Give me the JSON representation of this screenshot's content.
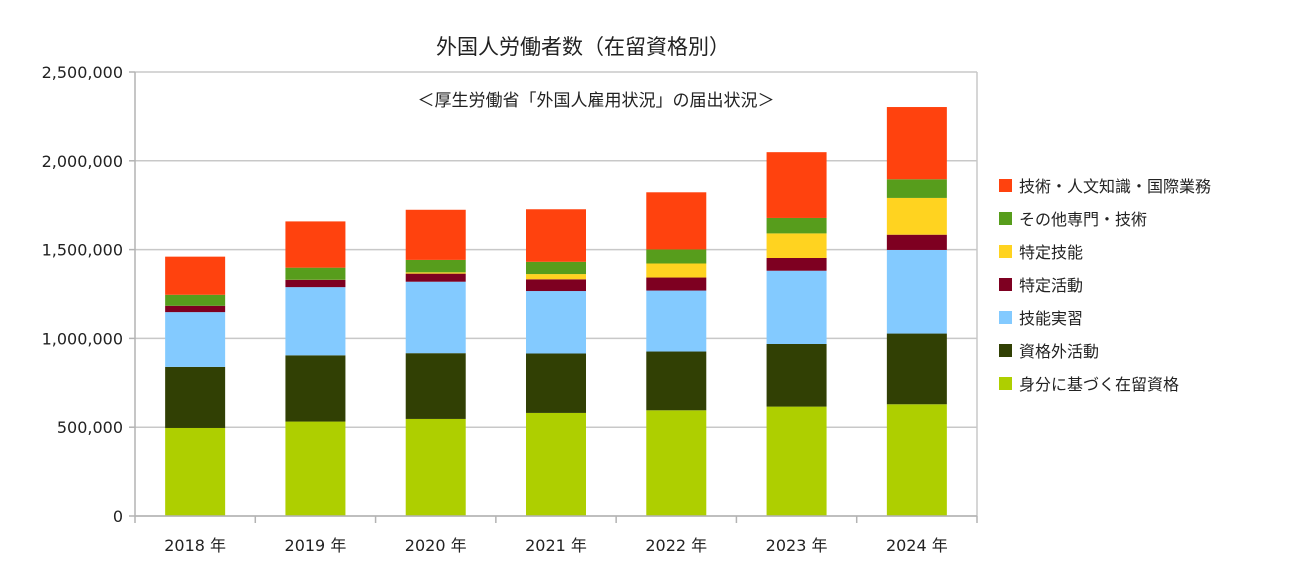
{
  "chart_data": {
    "type": "bar",
    "stacked": true,
    "title": "外国人労働者数（在留資格別）",
    "subtitle": "＜厚生労働省「外国人雇用状況」の届出状況＞",
    "xlabel": "",
    "ylabel": "",
    "ylim": [
      0,
      2500000
    ],
    "yticks": [
      0,
      500000,
      1000000,
      1500000,
      2000000,
      2500000
    ],
    "ytick_labels": [
      "0",
      "500,000",
      "1,000,000",
      "1,500,000",
      "2,000,000",
      "2,500,000"
    ],
    "grid": true,
    "legend_position": "right",
    "categories": [
      "2018 年",
      "2019 年",
      "2020 年",
      "2021 年",
      "2022 年",
      "2023 年",
      "2024 年"
    ],
    "series": [
      {
        "name": "身分に基づく在留資格",
        "color": "#aecf00",
        "values": [
          495668,
          531781,
          546469,
          580328,
          595207,
          615934,
          629117
        ]
      },
      {
        "name": "資格外活動",
        "color": "#314004",
        "values": [
          343791,
          372894,
          370346,
          334603,
          330910,
          352581,
          398167
        ]
      },
      {
        "name": "技能実習",
        "color": "#83caff",
        "values": [
          308489,
          383978,
          402356,
          351788,
          343254,
          412501,
          470725
        ]
      },
      {
        "name": "特定活動",
        "color": "#7e0021",
        "values": [
          35615,
          41075,
          45565,
          65928,
          73363,
          71676,
          85901
        ]
      },
      {
        "name": "特定技能",
        "color": "#ffd320",
        "values": [
          0,
          520,
          7262,
          29592,
          79054,
          138518,
          206995
        ]
      },
      {
        "name": "その他専門・技術",
        "color": "#579d1c",
        "values": [
          62000,
          68000,
          70000,
          69000,
          79000,
          87000,
          105000
        ]
      },
      {
        "name": "技術・人文知識・国際業務",
        "color": "#ff420e",
        "values": [
          214770,
          260514,
          282258,
          295917,
          321895,
          370386,
          406817
        ]
      }
    ]
  }
}
